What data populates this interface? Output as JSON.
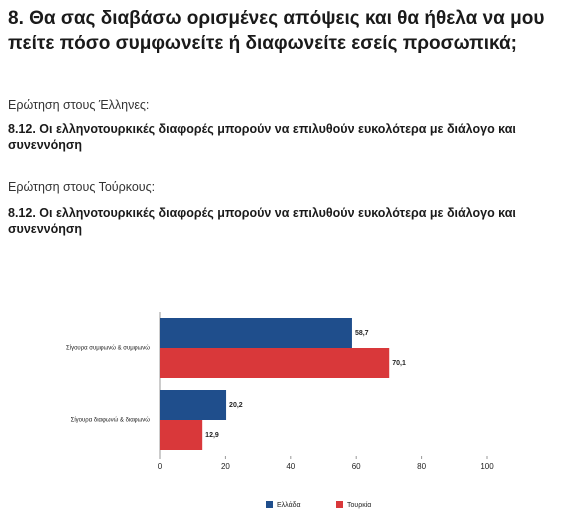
{
  "header": {
    "title": "8. Θα σας διαβάσω ορισμένες απόψεις και θα ήθελα να μου πείτε πόσο συμφωνείτε ή διαφωνείτε εσείς προσωπικά;",
    "question_1_label": "Ερώτηση στους Έλληνες:",
    "question_1_text": "8.12. Οι ελληνοτουρκικές διαφορές μπορούν να επιλυθούν ευκολότερα με διάλογο και συνεννόηση",
    "question_2_label": "Ερώτηση στους Τούρκους:",
    "question_2_text": "8.12. Οι ελληνοτουρκικές διαφορές μπορούν να επιλυθούν ευκολότερα με διάλογο και συνεννόηση"
  },
  "chart_data": {
    "type": "hbar",
    "categories": [
      "Σίγουρα συμφωνώ & συμφωνώ",
      "Σίγουρα διαφωνώ & διαφωνώ"
    ],
    "series": [
      {
        "name": "Ελλάδα",
        "color": "#1f4e8c",
        "values": [
          58.7,
          20.2
        ],
        "value_labels": [
          "58,7",
          "20,2"
        ]
      },
      {
        "name": "Τουρκία",
        "color": "#d9383a",
        "values": [
          70.1,
          12.9
        ],
        "value_labels": [
          "70,1",
          "12,9"
        ]
      }
    ],
    "xlim": [
      0,
      100
    ],
    "xticks": [
      0,
      20,
      40,
      60,
      80,
      100
    ],
    "legend": "bottom"
  }
}
